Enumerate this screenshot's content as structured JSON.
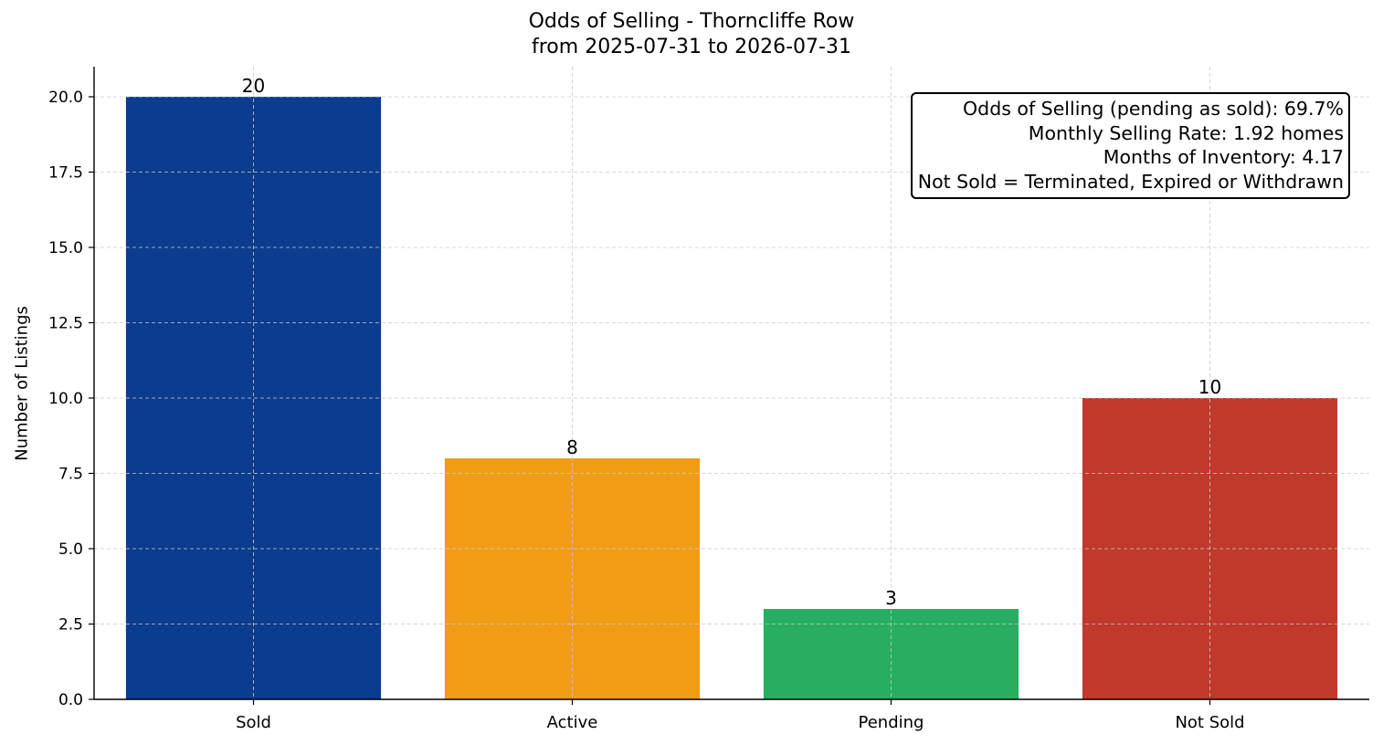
{
  "chart_data": {
    "type": "bar",
    "title": "Odds of Selling - Thorncliffe Row",
    "subtitle": "from 2025-07-31 to 2026-07-31",
    "xlabel": "",
    "ylabel": "Number of Listings",
    "categories": [
      "Sold",
      "Active",
      "Pending",
      "Not Sold"
    ],
    "values": [
      20,
      8,
      3,
      10
    ],
    "data_labels": [
      "20",
      "8",
      "3",
      "10"
    ],
    "colors": [
      "#0b3c8e",
      "#f19c15",
      "#27ae60",
      "#c0392b"
    ],
    "ylim": [
      0,
      21
    ],
    "yticks": [
      "0.0",
      "2.5",
      "5.0",
      "7.5",
      "10.0",
      "12.5",
      "15.0",
      "17.5",
      "20.0"
    ],
    "grid": true,
    "annotation": [
      "Odds of Selling (pending as sold): 69.7%",
      "Monthly Selling Rate: 1.92 homes",
      "Months of Inventory: 4.17",
      "Not Sold = Terminated, Expired or Withdrawn"
    ]
  }
}
